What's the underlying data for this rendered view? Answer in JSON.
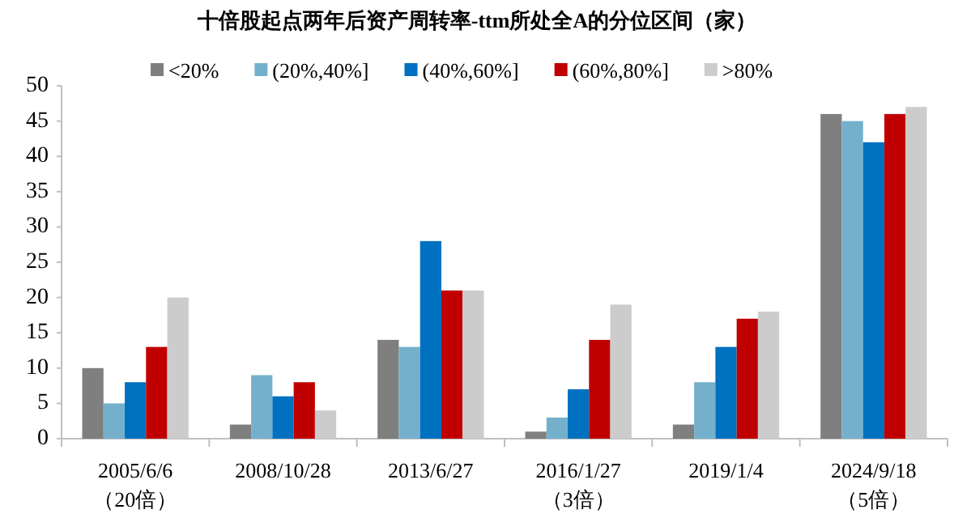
{
  "chart_data": {
    "type": "bar",
    "title": "十倍股起点两年后资产周转率-ttm所处全A的分位区间（家）",
    "categories": [
      "2005/6/6\n（20倍）",
      "2008/10/28",
      "2013/6/27",
      "2016/1/27\n（3倍）",
      "2019/1/4",
      "2024/9/18\n（5倍）"
    ],
    "series": [
      {
        "name": "<20%",
        "color": "#7f7f7f",
        "values": [
          10,
          2,
          14,
          1,
          2,
          46
        ]
      },
      {
        "name": "(20%,40%]",
        "color": "#74b0cc",
        "values": [
          5,
          9,
          13,
          3,
          8,
          45
        ]
      },
      {
        "name": "(40%,60%]",
        "color": "#0070c0",
        "values": [
          8,
          6,
          28,
          7,
          13,
          42
        ]
      },
      {
        "name": "(60%,80%]",
        "color": "#c00000",
        "values": [
          13,
          8,
          21,
          14,
          17,
          46
        ]
      },
      {
        "name": ">80%",
        "color": "#cccccc",
        "values": [
          20,
          4,
          21,
          19,
          18,
          47
        ]
      }
    ],
    "ylim": [
      0,
      50
    ],
    "yticks": [
      0,
      5,
      10,
      15,
      20,
      25,
      30,
      35,
      40,
      45,
      50
    ],
    "grid": false,
    "legend": "top"
  }
}
